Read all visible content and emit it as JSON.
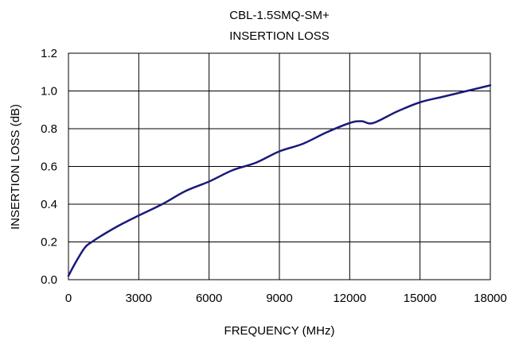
{
  "chart_data": {
    "type": "line",
    "title_lines": [
      "CBL-1.5SMQ-SM+",
      "INSERTION LOSS"
    ],
    "xlabel": "FREQUENCY (MHz)",
    "ylabel": "INSERTION LOSS (dB)",
    "xlim": [
      0,
      18000
    ],
    "ylim": [
      0,
      1.2
    ],
    "x_ticks": [
      "0",
      "3000",
      "6000",
      "9000",
      "12000",
      "15000",
      "18000"
    ],
    "y_ticks": [
      "0.0",
      "0.2",
      "0.4",
      "0.6",
      "0.8",
      "1.0",
      "1.2"
    ],
    "grid": true,
    "line_color": "#1a1a7a",
    "series": [
      {
        "x": [
          0,
          300,
          700,
          1000,
          1500,
          2200,
          3000,
          4000,
          5000,
          6000,
          7000,
          8000,
          9000,
          10000,
          11000,
          12000,
          12500,
          13000,
          14000,
          15000,
          16000,
          17000,
          18000
        ],
        "values": [
          0.02,
          0.09,
          0.17,
          0.2,
          0.24,
          0.29,
          0.34,
          0.4,
          0.47,
          0.52,
          0.58,
          0.62,
          0.68,
          0.72,
          0.78,
          0.83,
          0.84,
          0.83,
          0.89,
          0.94,
          0.97,
          1.0,
          1.03
        ]
      }
    ]
  }
}
